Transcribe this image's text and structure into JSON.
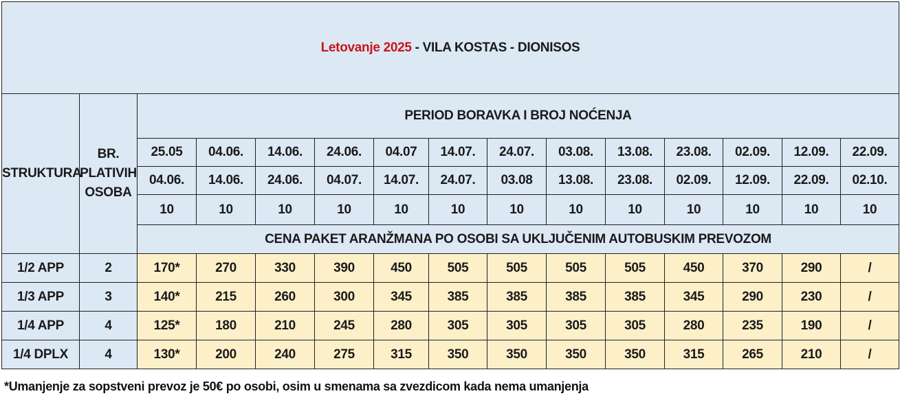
{
  "title": {
    "highlight": "Letovanje 2025",
    "rest": " - VILA KOSTAS - DIONISOS"
  },
  "headers": {
    "struktura": "STRUKTURA",
    "br_line1": "BR.",
    "br_line2": "PLATIVIH",
    "br_line3": "OSOBA",
    "period": "PERIOD BORAVKA I BROJ NOĆENJA",
    "cena": "CENA PAKET ARANŽMANA PO OSOBI SA UKLJUČENIM AUTOBUSKIM PREVOZOM"
  },
  "periods": [
    {
      "from": "25.05",
      "to": "04.06.",
      "nights": "10"
    },
    {
      "from": "04.06.",
      "to": "14.06.",
      "nights": "10"
    },
    {
      "from": "14.06.",
      "to": "24.06.",
      "nights": "10"
    },
    {
      "from": "24.06.",
      "to": "04.07.",
      "nights": "10"
    },
    {
      "from": "04.07",
      "to": "14.07.",
      "nights": "10"
    },
    {
      "from": "14.07.",
      "to": "24.07.",
      "nights": "10"
    },
    {
      "from": "24.07.",
      "to": "03.08",
      "nights": "10"
    },
    {
      "from": "03.08.",
      "to": "13.08.",
      "nights": "10"
    },
    {
      "from": "13.08.",
      "to": "23.08.",
      "nights": "10"
    },
    {
      "from": "23.08.",
      "to": "02.09.",
      "nights": "10"
    },
    {
      "from": "02.09.",
      "to": "12.09.",
      "nights": "10"
    },
    {
      "from": "12.09.",
      "to": "22.09.",
      "nights": "10"
    },
    {
      "from": "22.09.",
      "to": "02.10.",
      "nights": "10"
    }
  ],
  "rows": [
    {
      "struktura": "1/2 APP",
      "osobe": "2",
      "prices": [
        "170*",
        "270",
        "330",
        "390",
        "450",
        "505",
        "505",
        "505",
        "505",
        "450",
        "370",
        "290",
        "/"
      ]
    },
    {
      "struktura": "1/3 APP",
      "osobe": "3",
      "prices": [
        "140*",
        "215",
        "260",
        "300",
        "345",
        "385",
        "385",
        "385",
        "385",
        "345",
        "290",
        "230",
        "/"
      ]
    },
    {
      "struktura": "1/4 APP",
      "osobe": "4",
      "prices": [
        "125*",
        "180",
        "210",
        "245",
        "280",
        "305",
        "305",
        "305",
        "305",
        "280",
        "235",
        "190",
        "/"
      ]
    },
    {
      "struktura": "1/4 DPLX",
      "osobe": "4",
      "prices": [
        "130*",
        "200",
        "240",
        "275",
        "315",
        "350",
        "350",
        "350",
        "350",
        "315",
        "265",
        "210",
        "/"
      ]
    }
  ],
  "footnote": "*Umanjenje za sopstveni prevoz je 50€ po osobi, osim u smenama sa zvezdicom kada nema umanjenja",
  "colors": {
    "header_bg": "#dce8f4",
    "price_bg": "#fdf0c9",
    "title_red": "#c8151b"
  }
}
